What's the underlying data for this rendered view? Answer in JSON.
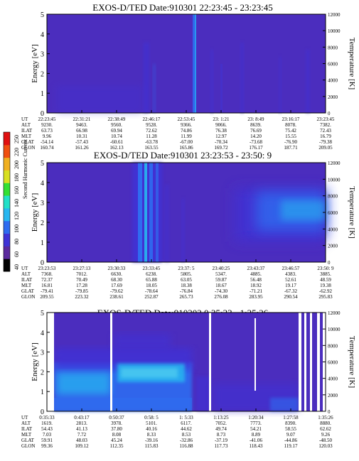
{
  "colors": {
    "background": "#ffffff",
    "spectrogram_base": "#4b2dbe",
    "colormap": [
      "#000000",
      "#5b2a9e",
      "#3f33d6",
      "#2f6cf0",
      "#27b7f0",
      "#22e0c8",
      "#33e033",
      "#d8e020",
      "#f0b020",
      "#f05010",
      "#e01010"
    ]
  },
  "colorbar": {
    "label": "Second Harmonic Current",
    "ticks": [
      "40",
      "60",
      "80",
      "100",
      "120",
      "140",
      "160",
      "180",
      "200",
      "220",
      "250"
    ]
  },
  "chart_data": [
    {
      "type": "heatmap",
      "title": "EXOS-D/TED   Date:910301   22:23:45 - 23:23:45",
      "ylabel": "Energy [eV]",
      "y2label": "Temperature [K]",
      "ylim": [
        0,
        5
      ],
      "y2lim": [
        0,
        12000
      ],
      "yticks": [
        "0",
        "1",
        "2",
        "3",
        "4",
        "5"
      ],
      "y2ticks": [
        "0",
        "2000",
        "4000",
        "6000",
        "8000",
        "10000",
        "12000"
      ],
      "orbit_table": {
        "row_labels": [
          "UT",
          "ALT",
          "ILAT",
          "MLT",
          "GLAT",
          "GLON"
        ],
        "columns": [
          [
            "22:23:45",
            "9230.",
            "63.73",
            "9.96",
            "-54.14",
            "160.74"
          ],
          [
            "22:31:21",
            "9463.",
            "66.98",
            "10.31",
            "-57.43",
            "161.26"
          ],
          [
            "22:38:49",
            "9560.",
            "69.94",
            "10.74",
            "-60.61",
            "162.13"
          ],
          [
            "22:46:17",
            "9528.",
            "72.62",
            "11.28",
            "-63.78",
            "163.55"
          ],
          [
            "22:53:45",
            "9366.",
            "74.86",
            "11.99",
            "-67.00",
            "165.86"
          ],
          [
            "23: 1:21",
            "9066.",
            "76.38",
            "12.97",
            "-70.34",
            "169.72"
          ],
          [
            "23: 8:49",
            "8639.",
            "76.69",
            "14.20",
            "-73.68",
            "176.17"
          ],
          [
            "23:16:17",
            "8078.",
            "75.42",
            "15.55",
            "-76.90",
            "187.71"
          ],
          [
            "23:23:45",
            "7382.",
            "72.43",
            "16.79",
            "-79.38",
            "209.05"
          ]
        ]
      }
    },
    {
      "type": "heatmap",
      "title": "EXOS-D/TED   Date:910301   23:23:53 - 23:50: 9",
      "ylabel": "Energy [eV]",
      "y2label": "Temperature [K]",
      "ylim": [
        0,
        5
      ],
      "y2lim": [
        0,
        12000
      ],
      "yticks": [
        "0",
        "1",
        "2",
        "3",
        "4",
        "5"
      ],
      "y2ticks": [
        "0",
        "2000",
        "4000",
        "6000",
        "8000",
        "10000",
        "12000"
      ],
      "orbit_table": {
        "row_labels": [
          "UT",
          "ALT",
          "ILAT",
          "MLT",
          "GLAT",
          "GLON"
        ],
        "columns": [
          [
            "23:23:53",
            "7368.",
            "72.37",
            "16.81",
            "-79.41",
            "209.55"
          ],
          [
            "23:27:13",
            "7012.",
            "70.49",
            "17.28",
            "-79.85",
            "223.32"
          ],
          [
            "23:30:33",
            "6630.",
            "68.30",
            "17.69",
            "-79.62",
            "238.61"
          ],
          [
            "23:33:45",
            "6238.",
            "65.88",
            "18.05",
            "-78.64",
            "252.87"
          ],
          [
            "23:37: 5",
            "5805.",
            "63.05",
            "18.38",
            "-76.84",
            "265.73"
          ],
          [
            "23:40:25",
            "5347.",
            "59.87",
            "18.67",
            "-74.30",
            "276.08"
          ],
          [
            "23:43:37",
            "4885.",
            "56.48",
            "18.92",
            "-71.21",
            "283.95"
          ],
          [
            "23:46:57",
            "4383.",
            "52.61",
            "19.17",
            "-67.32",
            "290.54"
          ],
          [
            "23:50: 9",
            "3885.",
            "48.59",
            "19.38",
            "-62.92",
            "295.83"
          ]
        ]
      }
    },
    {
      "type": "heatmap",
      "title": "EXOS-D/TED   Date:910302   0:35:33 - 1:35:26",
      "ylabel": "Energy [eV]",
      "y2label": "Temperature [K]",
      "ylim": [
        0,
        5
      ],
      "y2lim": [
        0,
        12000
      ],
      "yticks": [
        "0",
        "1",
        "2",
        "3",
        "4",
        "5"
      ],
      "y2ticks": [
        "0",
        "2000",
        "4000",
        "6000",
        "8000",
        "10000",
        "12000"
      ],
      "orbit_table": {
        "row_labels": [
          "UT",
          "ALT",
          "ILAT",
          "MLT",
          "GLAT",
          "GLON"
        ],
        "columns": [
          [
            "0:35:33",
            "1619.",
            "54.43",
            "7.03",
            "59.91",
            "99.36"
          ],
          [
            "0:43:17",
            "2813.",
            "41.13",
            "7.72",
            "48.03",
            "109.12"
          ],
          [
            "0:50:37",
            "3978.",
            "37.80",
            "8.08",
            "45.24",
            "112.35"
          ],
          [
            "0:58: 5",
            "5101.",
            "40.16",
            "8.33",
            "-39.16",
            "115.83"
          ],
          [
            "1: 5:33",
            "6117.",
            "44.62",
            "8.53",
            "-32.86",
            "116.88"
          ],
          [
            "1:13:25",
            "7052.",
            "49.74",
            "8.73",
            "-37.19",
            "117.73"
          ],
          [
            "1:20:34",
            "7773.",
            "54.21",
            "8.89",
            "-41.06",
            "118.43"
          ],
          [
            "1:27:58",
            "8390.",
            "58.55",
            "9.07",
            "-44.86",
            "119.17"
          ],
          [
            "1:35:26",
            "8880.",
            "62.62",
            "9.26",
            "-48.50",
            "120.03"
          ]
        ]
      }
    }
  ]
}
